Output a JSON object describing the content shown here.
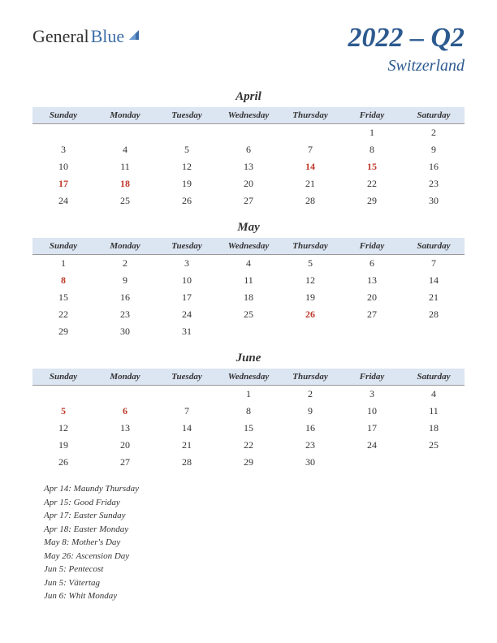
{
  "logo": {
    "general": "General",
    "blue": "Blue"
  },
  "title": "2022 – Q2",
  "subtitle": "Switzerland",
  "colors": {
    "header_bg": "#dce5f2",
    "title_color": "#2d5a8f",
    "holiday_color": "#c0392b",
    "text_color": "#333333",
    "background": "#ffffff"
  },
  "day_headers": [
    "Sunday",
    "Monday",
    "Tuesday",
    "Wednesday",
    "Thursday",
    "Friday",
    "Saturday"
  ],
  "months": [
    {
      "name": "April",
      "weeks": [
        [
          "",
          "",
          "",
          "",
          "",
          "1",
          "2"
        ],
        [
          "3",
          "4",
          "5",
          "6",
          "7",
          "8",
          "9"
        ],
        [
          "10",
          "11",
          "12",
          "13",
          "14",
          "15",
          "16"
        ],
        [
          "17",
          "18",
          "19",
          "20",
          "21",
          "22",
          "23"
        ],
        [
          "24",
          "25",
          "26",
          "27",
          "28",
          "29",
          "30"
        ]
      ],
      "holidays": [
        "14",
        "15",
        "17",
        "18"
      ]
    },
    {
      "name": "May",
      "weeks": [
        [
          "1",
          "2",
          "3",
          "4",
          "5",
          "6",
          "7"
        ],
        [
          "8",
          "9",
          "10",
          "11",
          "12",
          "13",
          "14"
        ],
        [
          "15",
          "16",
          "17",
          "18",
          "19",
          "20",
          "21"
        ],
        [
          "22",
          "23",
          "24",
          "25",
          "26",
          "27",
          "28"
        ],
        [
          "29",
          "30",
          "31",
          "",
          "",
          "",
          ""
        ]
      ],
      "holidays": [
        "8",
        "26"
      ]
    },
    {
      "name": "June",
      "weeks": [
        [
          "",
          "",
          "",
          "1",
          "2",
          "3",
          "4"
        ],
        [
          "5",
          "6",
          "7",
          "8",
          "9",
          "10",
          "11"
        ],
        [
          "12",
          "13",
          "14",
          "15",
          "16",
          "17",
          "18"
        ],
        [
          "19",
          "20",
          "21",
          "22",
          "23",
          "24",
          "25"
        ],
        [
          "26",
          "27",
          "28",
          "29",
          "30",
          "",
          ""
        ]
      ],
      "holidays": [
        "5",
        "6"
      ]
    }
  ],
  "holiday_list": [
    "Apr 14: Maundy Thursday",
    "Apr 15: Good Friday",
    "Apr 17: Easter Sunday",
    "Apr 18: Easter Monday",
    "May 8: Mother's Day",
    "May 26: Ascension Day",
    "Jun 5: Pentecost",
    "Jun 5: Vätertag",
    "Jun 6: Whit Monday"
  ]
}
